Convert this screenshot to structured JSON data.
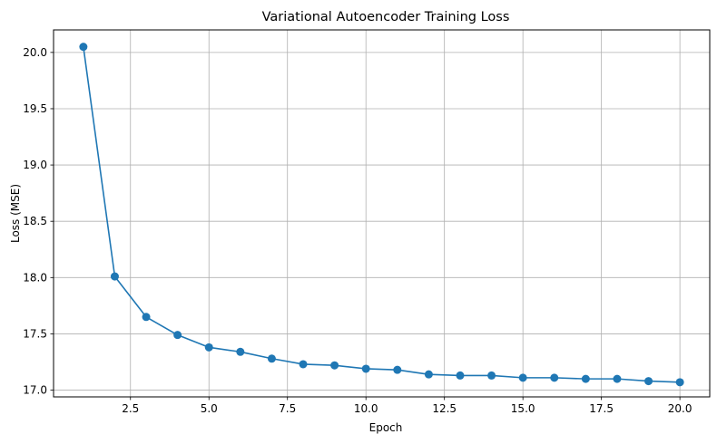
{
  "chart_data": {
    "type": "line",
    "title": "Variational Autoencoder Training Loss",
    "xlabel": "Epoch",
    "ylabel": "Loss (MSE)",
    "xlim": [
      0.05,
      20.95
    ],
    "ylim": [
      16.94,
      20.2
    ],
    "xticks": [
      2.5,
      5.0,
      7.5,
      10.0,
      12.5,
      15.0,
      17.5,
      20.0
    ],
    "xtick_labels": [
      "2.5",
      "5.0",
      "7.5",
      "10.0",
      "12.5",
      "15.0",
      "17.5",
      "20.0"
    ],
    "yticks": [
      17.0,
      17.5,
      18.0,
      18.5,
      19.0,
      19.5,
      20.0
    ],
    "ytick_labels": [
      "17.0",
      "17.5",
      "18.0",
      "18.5",
      "19.0",
      "19.5",
      "20.0"
    ],
    "grid": true,
    "marker": "circle",
    "series": [
      {
        "color": "#1f77b4",
        "x": [
          1,
          2,
          3,
          4,
          5,
          6,
          7,
          8,
          9,
          10,
          11,
          12,
          13,
          14,
          15,
          16,
          17,
          18,
          19,
          20
        ],
        "y": [
          20.05,
          18.01,
          17.65,
          17.49,
          17.38,
          17.34,
          17.28,
          17.23,
          17.22,
          17.19,
          17.18,
          17.14,
          17.13,
          17.13,
          17.11,
          17.11,
          17.1,
          17.1,
          17.08,
          17.07
        ]
      }
    ]
  }
}
